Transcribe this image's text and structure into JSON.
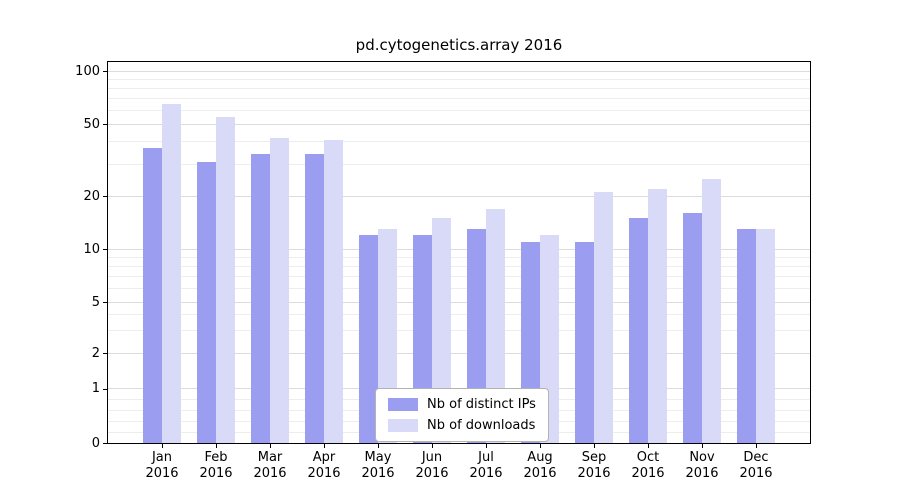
{
  "chart_data": {
    "type": "bar",
    "title": "pd.cytogenetics.array 2016",
    "categories": [
      "Jan",
      "Feb",
      "Mar",
      "Apr",
      "May",
      "Jun",
      "Jul",
      "Aug",
      "Sep",
      "Oct",
      "Nov",
      "Dec"
    ],
    "x_tick_second_line": "2016",
    "series": [
      {
        "name": "Nb of distinct IPs",
        "color": "#9b9ef0",
        "values": [
          37,
          31,
          34,
          34,
          12,
          12,
          13,
          11,
          11,
          15,
          16,
          13
        ]
      },
      {
        "name": "Nb of downloads",
        "color": "#d9daf8",
        "values": [
          65,
          55,
          42,
          41,
          13,
          15,
          17,
          12,
          21,
          22,
          25,
          13
        ]
      }
    ],
    "yticks": [
      0,
      1,
      2,
      5,
      10,
      20,
      50,
      100
    ],
    "yscale": "symlog",
    "xlabel": "",
    "ylabel": "",
    "grid": true,
    "legend_position": "lower center"
  }
}
